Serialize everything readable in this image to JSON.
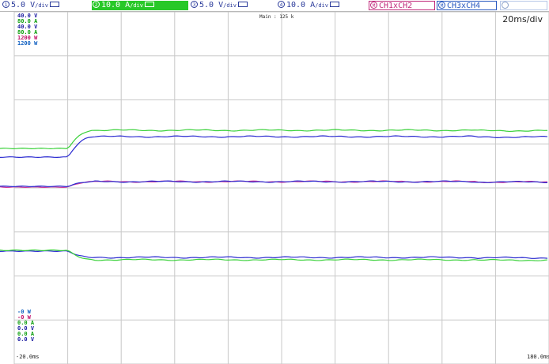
{
  "header": {
    "channels": [
      {
        "num": "1",
        "label": "5.0 V",
        "unit_suffix": "/div",
        "color": "#2a3a9a",
        "bg": "#ffffff",
        "icon": "channel-1-icon"
      },
      {
        "num": "2",
        "label": "10.0 A",
        "unit_suffix": "/div",
        "color": "#ffffff",
        "bg": "#28c828",
        "icon": "channel-2-icon"
      },
      {
        "num": "3",
        "label": "5.0 V",
        "unit_suffix": "/div",
        "color": "#2a3a9a",
        "bg": "#ffffff",
        "icon": "channel-3-icon"
      },
      {
        "num": "4",
        "label": "10.0 A",
        "unit_suffix": "/div",
        "color": "#2a3a9a",
        "bg": "#ffffff",
        "icon": "channel-4-icon"
      }
    ],
    "math": [
      {
        "label": "CH1xCH2",
        "color": "#c0287a",
        "icon": "math-icon"
      },
      {
        "label": "CH3xCH4",
        "color": "#2858c0",
        "icon": "math-icon"
      }
    ]
  },
  "timebase": "20ms/div",
  "main_label": "Main : 125 k",
  "scale_top": [
    {
      "text": "40.0 V",
      "color": "#1a1aa0"
    },
    {
      "text": "80.0 A",
      "color": "#10a010"
    },
    {
      "text": "40.0 V",
      "color": "#1a1aa0"
    },
    {
      "text": "80.0 A",
      "color": "#10a010"
    },
    {
      "text": "1200 W",
      "color": "#c0106a"
    },
    {
      "text": "1200 W",
      "color": "#1060c0"
    }
  ],
  "scale_bottom": [
    {
      "text": "-0 W",
      "color": "#1060c0"
    },
    {
      "text": "-0 W",
      "color": "#c0106a"
    },
    {
      "text": "0.0 A",
      "color": "#10a010"
    },
    {
      "text": "0.0 V",
      "color": "#1a1aa0"
    },
    {
      "text": "0.0 A",
      "color": "#10a010"
    },
    {
      "text": "0.0 V",
      "color": "#1a1aa0"
    }
  ],
  "x_axis": {
    "left_label": "-20.0ms",
    "right_label": "180.0ms"
  },
  "colors": {
    "grid": "#c8c8c8",
    "green": "#3ad13a",
    "blue": "#2a2ad0",
    "magenta": "#d03a9a"
  },
  "traces": [
    {
      "name": "upper-green",
      "color": "#3ad13a",
      "level_before": 188,
      "level_after": 165
    },
    {
      "name": "upper-blue",
      "color": "#2a2ad0",
      "level_before": 199,
      "level_after": 173
    },
    {
      "name": "middle-magenta",
      "color": "#d03a9a",
      "level_before": 237,
      "level_after": 230
    },
    {
      "name": "middle-blue",
      "color": "#2a2ad0",
      "level_before": 236,
      "level_after": 230
    },
    {
      "name": "lower-blue",
      "color": "#2a2ad0",
      "level_before": 318,
      "level_after": 326
    },
    {
      "name": "lower-green",
      "color": "#3ad13a",
      "level_before": 317,
      "level_after": 329
    }
  ]
}
